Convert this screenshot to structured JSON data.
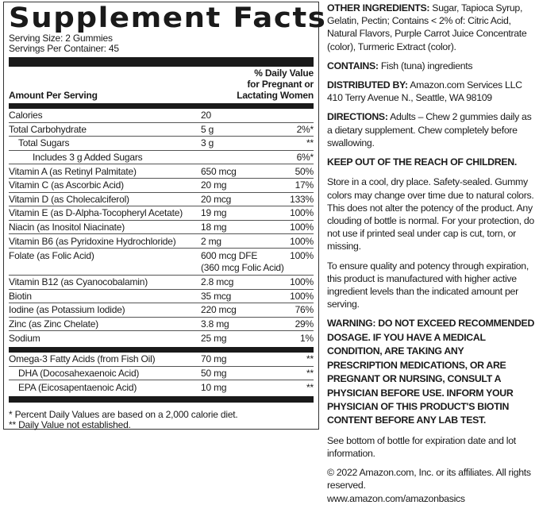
{
  "title": "Supplement Facts",
  "serving_size": "Serving Size: 2 Gummies",
  "servings_per_container": "Servings Per Container: 45",
  "header": {
    "amount": "Amount Per Serving",
    "dv1": "% Daily Value",
    "dv2": "for Pregnant or",
    "dv3": "Lactating Women"
  },
  "rows": [
    {
      "name": "Calories",
      "amount": "20",
      "dv": ""
    },
    {
      "name": "Total Carbohydrate",
      "amount": "5 g",
      "dv": "2%*"
    },
    {
      "name": "Total Sugars",
      "amount": "3 g",
      "dv": "**"
    },
    {
      "name": "Includes 3 g Added Sugars",
      "amount": "",
      "dv": "6%*"
    },
    {
      "name": "Vitamin A (as Retinyl Palmitate)",
      "amount": "650 mcg",
      "dv": "50%"
    },
    {
      "name": "Vitamin C (as Ascorbic Acid)",
      "amount": "20 mg",
      "dv": "17%"
    },
    {
      "name": "Vitamin D (as Cholecalciferol)",
      "amount": "20 mcg",
      "dv": "133%"
    },
    {
      "name": "Vitamin E (as D-Alpha-Tocopheryl Acetate)",
      "amount": "19 mg",
      "dv": "100%"
    },
    {
      "name": "Niacin (as Inositol Niacinate)",
      "amount": "18 mg",
      "dv": "100%"
    },
    {
      "name": "Vitamin B6 (as Pyridoxine Hydrochloride)",
      "amount": "2 mg",
      "dv": "100%"
    },
    {
      "name": "Folate (as Folic Acid)",
      "amount": "600 mcg DFE",
      "amount2": "(360 mcg Folic Acid)",
      "dv": "100%"
    },
    {
      "name": "Vitamin B12 (as Cyanocobalamin)",
      "amount": "2.8 mcg",
      "dv": "100%"
    },
    {
      "name": "Biotin",
      "amount": "35 mcg",
      "dv": "100%"
    },
    {
      "name": "Iodine (as Potassium Iodide)",
      "amount": "220 mcg",
      "dv": "76%"
    },
    {
      "name": "Zinc (as Zinc Chelate)",
      "amount": "3.8 mg",
      "dv": "29%"
    },
    {
      "name": "Sodium",
      "amount": "25 mg",
      "dv": "1%"
    },
    {
      "name": "Omega-3 Fatty Acids (from Fish Oil)",
      "amount": "70 mg",
      "dv": "**"
    },
    {
      "name": "DHA (Docosahexaenoic Acid)",
      "amount": "50 mg",
      "dv": "**"
    },
    {
      "name": "EPA (Eicosapentaenoic Acid)",
      "amount": "10 mg",
      "dv": "**"
    }
  ],
  "footnotes": [
    "* Percent Daily Values are based on a 2,000 calorie diet.",
    "** Daily Value not established."
  ],
  "right": {
    "other_label": "OTHER INGREDIENTS:",
    "other_text": " Sugar, Tapioca Syrup, Gelatin, Pectin; Contains < 2% of: Citric Acid, Natural Flavors, Purple Carrot Juice Concentrate (color), Turmeric Extract (color).",
    "contains_label": "CONTAINS:",
    "contains_text": " Fish (tuna) ingredients",
    "dist_label": "DISTRIBUTED BY:",
    "dist_text": " Amazon.com Services LLC 410 Terry Avenue N., Seattle, WA 98109",
    "dir_label": "DIRECTIONS:",
    "dir_text": " Adults – Chew 2 gummies daily as a dietary supplement. Chew completely before swallowing.",
    "keep": "KEEP OUT OF THE REACH OF CHILDREN.",
    "store": "Store in a cool, dry place. Safety-sealed. Gummy colors may change over time due to natural colors. This does not alter the potency of the product. Any clouding of bottle is normal. For your protection, do not use if printed seal under cap is cut, torn, or missing.",
    "quality": "To ensure quality and potency through expiration, this product is manufactured with higher active ingredient levels than the indicated amount per serving.",
    "warning": "WARNING:  DO NOT EXCEED RECOMMENDED DOSAGE. IF YOU HAVE A MEDICAL CONDITION, ARE TAKING ANY PRESCRIPTION MEDICATIONS, OR ARE PREGNANT OR NURSING, CONSULT A PHYSICIAN BEFORE USE. INFORM YOUR PHYSICIAN OF THIS PRODUCT'S BIOTIN CONTENT BEFORE ANY LAB TEST.",
    "expiry": "See bottom of bottle for expiration date and lot information.",
    "copyright": "© 2022 Amazon.com, Inc. or its affiliates. All rights reserved.",
    "url": "www.amazon.com/amazonbasics"
  }
}
